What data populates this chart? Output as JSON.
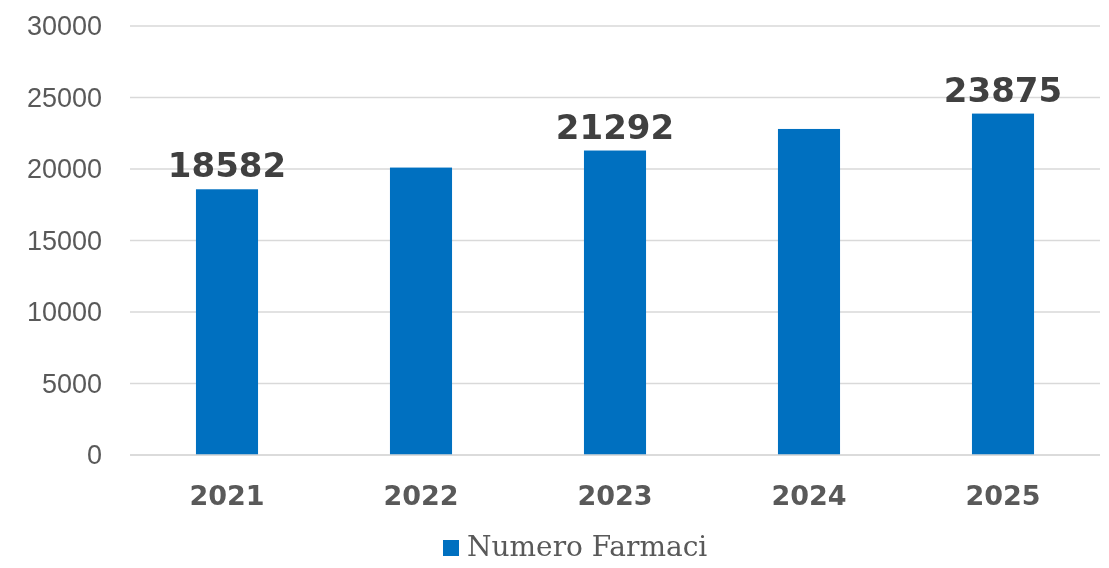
{
  "chart_data": {
    "type": "bar",
    "categories": [
      "2021",
      "2022",
      "2023",
      "2024",
      "2025"
    ],
    "series": [
      {
        "name": "Numero Farmaci",
        "color": "#0070c0",
        "values": [
          18582,
          20100,
          21292,
          22800,
          23875
        ],
        "value_labels": [
          "18582",
          null,
          "21292",
          null,
          "23875"
        ]
      }
    ],
    "ylim": [
      0,
      30000
    ],
    "yticks": [
      0,
      5000,
      10000,
      15000,
      20000,
      25000,
      30000
    ],
    "grid": "y",
    "legend": "bottom"
  }
}
